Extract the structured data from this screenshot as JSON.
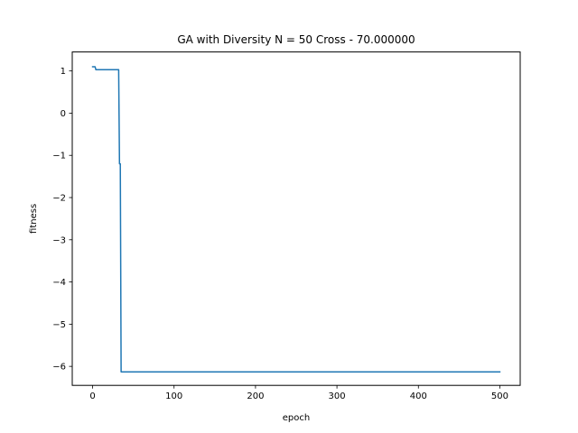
{
  "chart_data": {
    "type": "line",
    "title": "GA with Diversity N = 50 Cross - 70.000000",
    "xlabel": "epoch",
    "ylabel": "fitness",
    "xlim": [
      -25,
      525
    ],
    "ylim": [
      -6.45,
      1.45
    ],
    "xticks": [
      0,
      100,
      200,
      300,
      400,
      500
    ],
    "yticks": [
      1,
      0,
      -1,
      -2,
      -3,
      -4,
      -5,
      -6
    ],
    "xtick_labels": [
      "0",
      "100",
      "200",
      "300",
      "400",
      "500"
    ],
    "ytick_labels": [
      "1",
      "0",
      "−1",
      "−2",
      "−3",
      "−4",
      "−5",
      "−6"
    ],
    "grid": false,
    "legend": "none",
    "series": [
      {
        "color": "#1f77b4",
        "x": [
          0,
          3,
          4,
          32,
          33,
          34,
          35,
          36,
          37,
          500
        ],
        "y": [
          1.1,
          1.1,
          1.03,
          1.03,
          -1.2,
          -1.2,
          -6.13,
          -6.13,
          -6.13,
          -6.13
        ]
      }
    ]
  }
}
